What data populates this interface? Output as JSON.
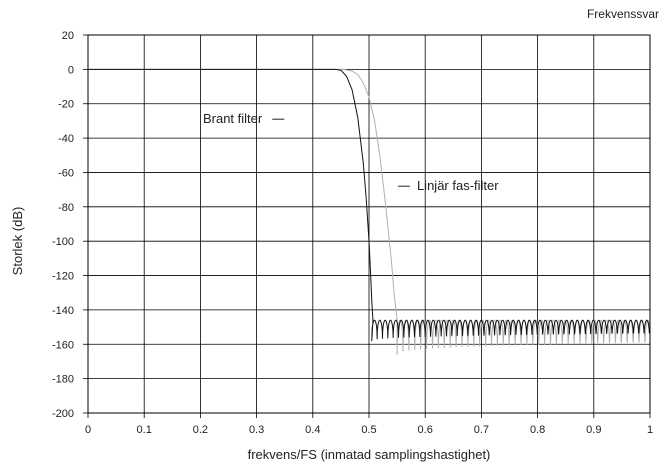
{
  "chart_data": {
    "type": "line",
    "title": "Frekvenssvar",
    "xlabel": "frekvens/FS (inmatad samplingshastighet)",
    "ylabel": "Storlek (dB)",
    "xlim": [
      0,
      1
    ],
    "ylim": [
      -200,
      20
    ],
    "x_ticks": [
      0,
      0.1,
      0.2,
      0.3,
      0.4,
      0.5,
      0.6,
      0.7,
      0.8,
      0.9,
      1
    ],
    "x_tick_labels": [
      "0",
      "0.1",
      "0.2",
      "0.3",
      "0.4",
      "0.5",
      "0.6",
      "0.7",
      "0.8",
      "0.9",
      "1"
    ],
    "y_ticks": [
      20,
      0,
      -20,
      -40,
      -60,
      -80,
      -100,
      -120,
      -140,
      -160,
      -180,
      -200
    ],
    "y_tick_labels": [
      "20",
      "0",
      "-20",
      "-40",
      "-60",
      "-80",
      "-100",
      "-120",
      "-140",
      "-160",
      "-180",
      "-200"
    ],
    "grid": true,
    "series": [
      {
        "name": "Brant filter",
        "color": "#111111",
        "passband": {
          "x": [
            0,
            0.44
          ],
          "y": [
            0,
            0
          ]
        },
        "transition": {
          "x": [
            0.44,
            0.45,
            0.46,
            0.47,
            0.48,
            0.49,
            0.495,
            0.5,
            0.503,
            0.505,
            0.507
          ],
          "y": [
            0,
            -0.5,
            -4,
            -12,
            -28,
            -55,
            -75,
            -100,
            -120,
            -135,
            -146
          ]
        },
        "stopband": {
          "x_start": 0.505,
          "x_end": 1.0,
          "ripple_period": 0.0095,
          "peak_db": -146,
          "trough_db": -158
        }
      },
      {
        "name": "Linjär fas-filter",
        "color": "#b0b0b0",
        "passband": {
          "x": [
            0,
            0.455
          ],
          "y": [
            0,
            0
          ]
        },
        "transition": {
          "x": [
            0.455,
            0.47,
            0.48,
            0.49,
            0.5,
            0.51,
            0.52,
            0.53,
            0.54,
            0.545,
            0.55
          ],
          "y": [
            0,
            -1,
            -3,
            -8,
            -16,
            -30,
            -52,
            -80,
            -112,
            -132,
            -145
          ]
        },
        "stopband": {
          "x_start": 0.55,
          "x_end": 1.0,
          "ripple_period": 0.0105,
          "peak_db": -146,
          "trough_db": -166
        }
      }
    ],
    "annotations": [
      {
        "text": "Brant filter",
        "x": 0.31,
        "y": -29,
        "series": 0
      },
      {
        "text": "Linjär fas-filter",
        "x": 0.58,
        "y": -68,
        "series": 1
      }
    ]
  }
}
